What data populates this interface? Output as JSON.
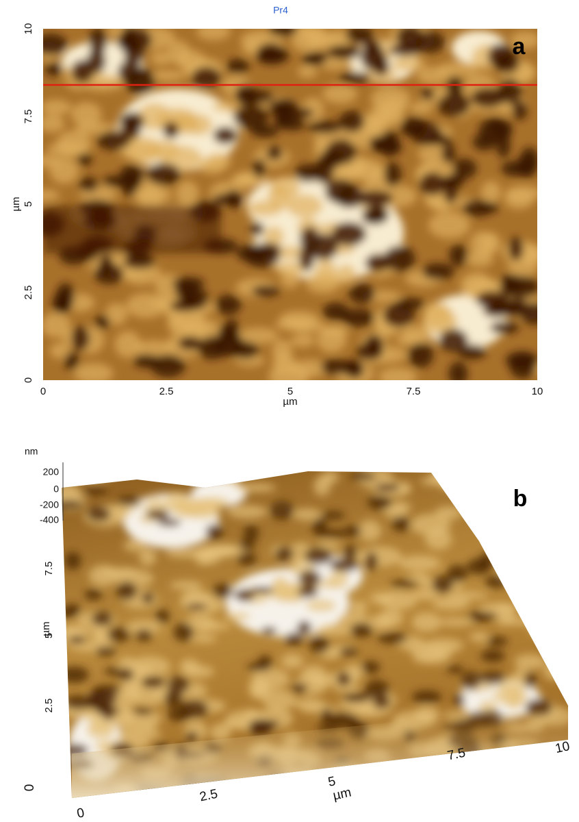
{
  "panel_a": {
    "title": "Pr4",
    "label": "a",
    "y_axis": {
      "label": "µm",
      "ticks": [
        "0",
        "2.5",
        "5",
        "7.5",
        "10"
      ]
    },
    "x_axis": {
      "label": "µm",
      "ticks": [
        "0",
        "2.5",
        "5",
        "7.5",
        "10"
      ]
    }
  },
  "panel_b": {
    "label": "b",
    "z_axis": {
      "unit": "nm",
      "ticks": [
        "200",
        "0",
        "-200",
        "-400"
      ]
    },
    "y_axis": {
      "label": "µm",
      "ticks": [
        "0",
        "2.5",
        "5",
        "7.5"
      ]
    },
    "x_axis": {
      "label": "µm",
      "ticks": [
        "0",
        "2.5",
        "5",
        "7.5",
        "10"
      ]
    }
  }
}
